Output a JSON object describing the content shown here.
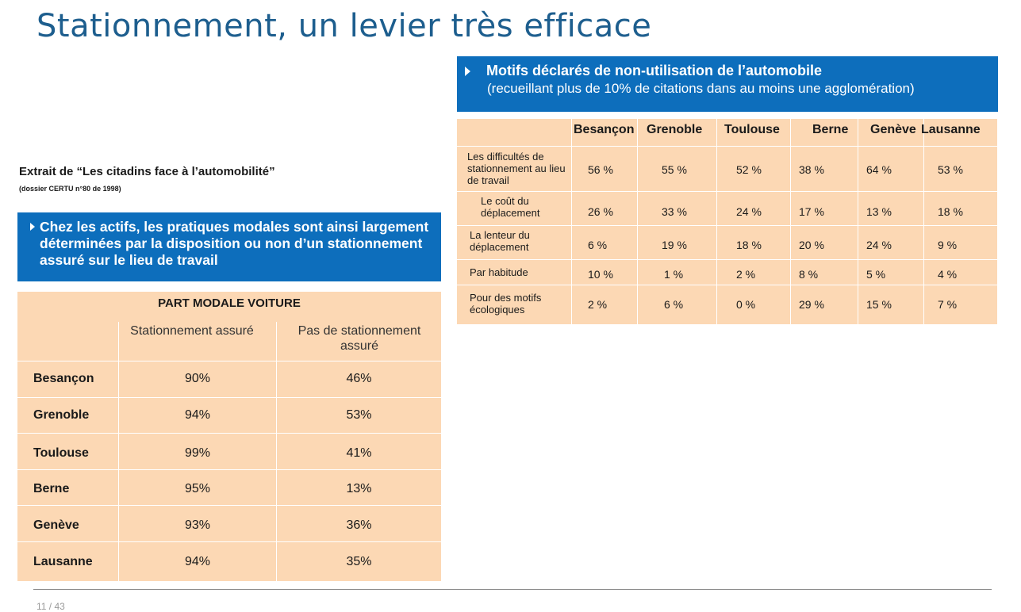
{
  "title": "Stationnement, un levier très efficace",
  "right_banner": {
    "title": "Motifs déclarés de non-utilisation de l’automobile",
    "subtitle": "(recueillant plus de 10% de citations dans au moins une agglomération)"
  },
  "motifs_table": {
    "cities": [
      "Besançon",
      "Grenoble",
      "Toulouse",
      "Berne",
      "Genève",
      "Lausanne"
    ],
    "rows": [
      {
        "label": "Les difficultés de stationnement au lieu de travail",
        "values": [
          "56 %",
          "55 %",
          "52 %",
          "38 %",
          "64 %",
          "53 %"
        ]
      },
      {
        "label": "Le coût du déplacement",
        "values": [
          "26 %",
          "33 %",
          "24 %",
          "17 %",
          "13 %",
          "18 %"
        ]
      },
      {
        "label": "La lenteur du déplacement",
        "values": [
          "6 %",
          "19 %",
          "18 %",
          "20 %",
          "24 %",
          "9 %"
        ]
      },
      {
        "label": "Par habitude",
        "values": [
          "10 %",
          "1 %",
          "2 %",
          "8 %",
          "5 %",
          "4 %"
        ]
      },
      {
        "label": "Pour des motifs écologiques",
        "values": [
          "2 %",
          "6 %",
          "0 %",
          "29 %",
          "15 %",
          "7 %"
        ]
      }
    ]
  },
  "extrait": {
    "title": "Extrait de “Les citadins face à l’automobilité”",
    "source": "(dossier CERTU n°80 de 1998)"
  },
  "left_banner": {
    "text": "Chez les actifs, les pratiques modales sont ainsi largement déterminées par la disposition ou non d’un stationnement assuré sur le lieu de travail"
  },
  "modale_table": {
    "caption": "PART MODALE VOITURE",
    "col1": "Stationnement assuré",
    "col2": "Pas de stationnement assuré",
    "rows": [
      {
        "city": "Besançon",
        "assure": "90%",
        "non_assure": "46%"
      },
      {
        "city": "Grenoble",
        "assure": "94%",
        "non_assure": "53%"
      },
      {
        "city": "Toulouse",
        "assure": "99%",
        "non_assure": "41%"
      },
      {
        "city": "Berne",
        "assure": "95%",
        "non_assure": "13%"
      },
      {
        "city": "Genève",
        "assure": "93%",
        "non_assure": "36%"
      },
      {
        "city": "Lausanne",
        "assure": "94%",
        "non_assure": "35%"
      }
    ]
  },
  "footer": {
    "page": "11 / 43"
  }
}
